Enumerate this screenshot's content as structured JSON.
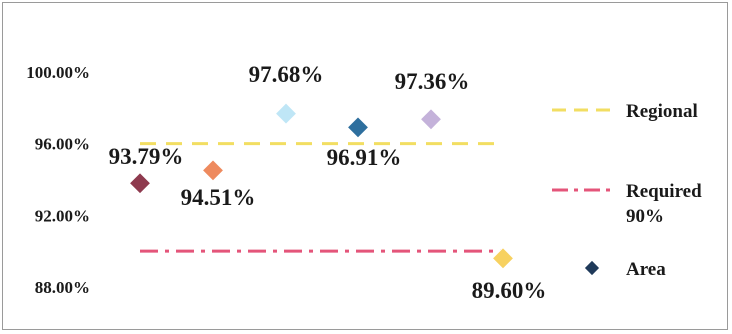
{
  "chart_data": {
    "type": "scatter",
    "title": "",
    "xlabel": "",
    "ylabel": "",
    "ylim": [
      87,
      101
    ],
    "y_ticks": [
      "100.00%",
      "96.00%",
      "92.00%",
      "88.00%"
    ],
    "y_tick_values": [
      100,
      96,
      92,
      88
    ],
    "grid": false,
    "legend_position": "right",
    "points": [
      {
        "value": 93.79,
        "label": "93.79%",
        "color": "#8e3a4e"
      },
      {
        "value": 94.51,
        "label": "94.51%",
        "color": "#ee8a5e"
      },
      {
        "value": 97.68,
        "label": "97.68%",
        "color": "#bfe6f6"
      },
      {
        "value": 96.91,
        "label": "96.91%",
        "color": "#2e6f9e"
      },
      {
        "value": 97.36,
        "label": "97.36%",
        "color": "#c4b2da"
      },
      {
        "value": 89.6,
        "label": "89.60%",
        "color": "#f7d160"
      }
    ],
    "reference_lines": [
      {
        "name": "Regional",
        "value": 96,
        "color": "#f2de62",
        "style": "dash"
      },
      {
        "name": "Required 90%",
        "name_line1": "Required",
        "name_line2": "90%",
        "value": 90,
        "color": "#e4557a",
        "style": "dash-dot"
      }
    ],
    "legend": [
      {
        "name": "Regional",
        "symbol": "dash",
        "color": "#f2de62"
      },
      {
        "name_line1": "Required",
        "name_line2": "90%",
        "symbol": "dash-dot",
        "color": "#e4557a"
      },
      {
        "name": "Area",
        "symbol": "diamond",
        "color": "#1f3a5a"
      }
    ]
  }
}
